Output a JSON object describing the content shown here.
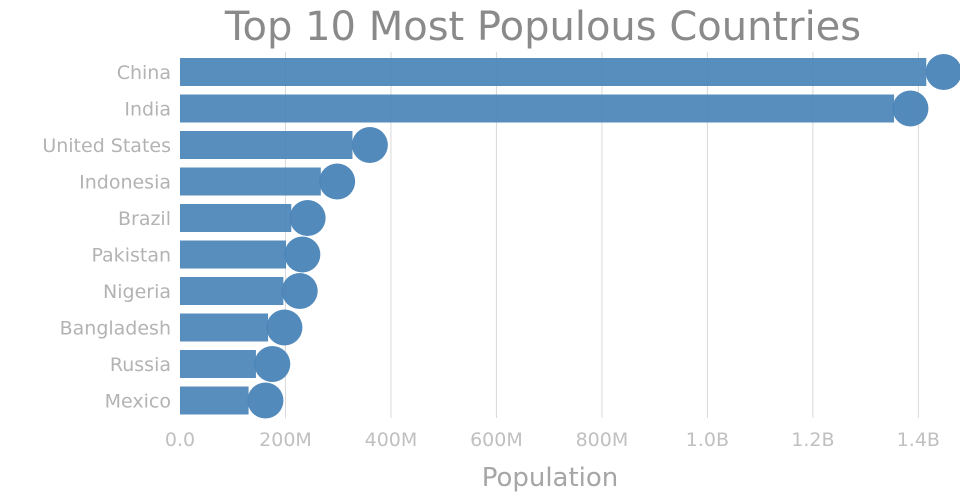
{
  "chart_data": {
    "type": "bar",
    "orientation": "horizontal",
    "title": "Top 10 Most Populous Countries",
    "xlabel": "Population",
    "ylabel": "",
    "categories": [
      "China",
      "India",
      "United States",
      "Indonesia",
      "Brazil",
      "Pakistan",
      "Nigeria",
      "Bangladesh",
      "Russia",
      "Mexico"
    ],
    "values": [
      1415000000,
      1354000000,
      327000000,
      267000000,
      211000000,
      201000000,
      196000000,
      167000000,
      144000000,
      130000000
    ],
    "marker_values": [
      1448000000,
      1385000000,
      360000000,
      298000000,
      242000000,
      232000000,
      227000000,
      198000000,
      175000000,
      162000000
    ],
    "xlim": [
      0,
      1460000000
    ],
    "x_ticks": [
      0,
      200000000,
      400000000,
      600000000,
      800000000,
      1000000000,
      1200000000,
      1400000000
    ],
    "x_tick_labels": [
      "0.0",
      "200M",
      "400M",
      "600M",
      "800M",
      "1.0B",
      "1.2B",
      "1.4B"
    ],
    "grid": true,
    "colors": {
      "bar": "#4a84b8",
      "marker": "#4a84b8"
    }
  }
}
